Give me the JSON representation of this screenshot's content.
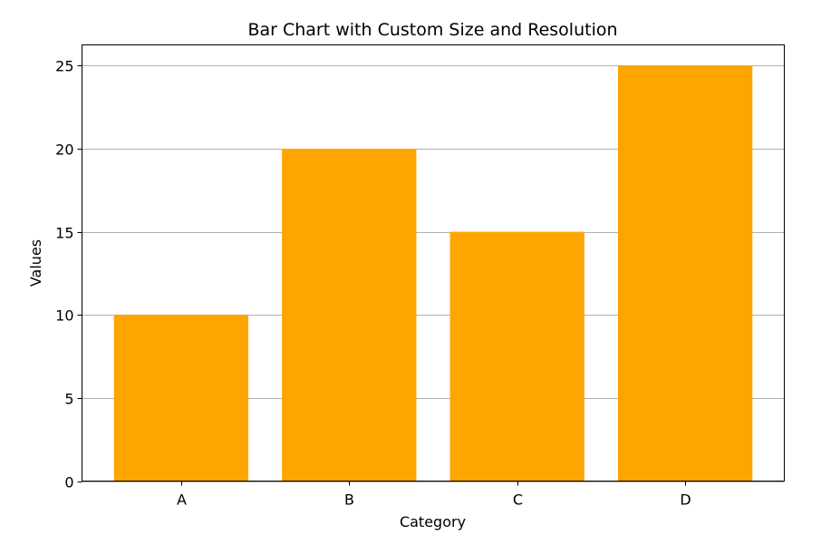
{
  "chart_data": {
    "type": "bar",
    "title": "Bar Chart with Custom Size and Resolution",
    "xlabel": "Category",
    "ylabel": "Values",
    "categories": [
      "A",
      "B",
      "C",
      "D"
    ],
    "values": [
      10,
      20,
      15,
      25
    ],
    "ylim": [
      0,
      26.25
    ],
    "yticks": [
      0,
      5,
      10,
      15,
      20,
      25
    ],
    "grid": "y",
    "bar_color": "#ffa500",
    "grid_color": "#b0b0b0"
  }
}
